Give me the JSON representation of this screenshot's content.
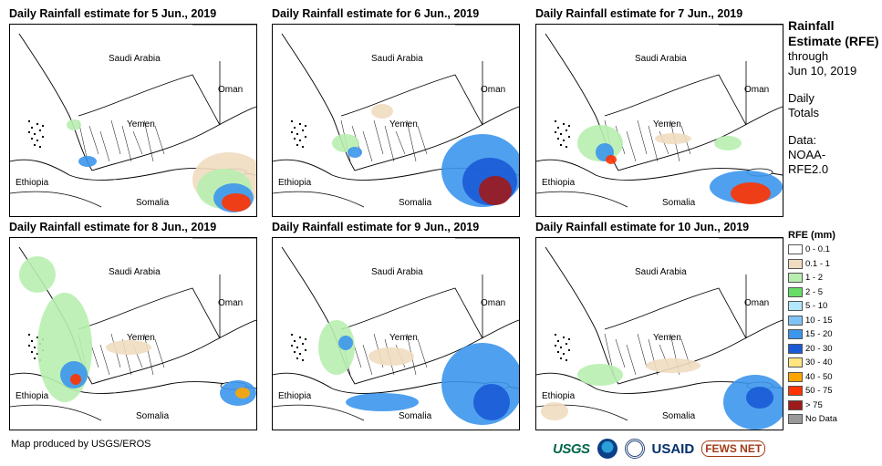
{
  "panels": [
    {
      "title": "Daily Rainfall estimate for 5 Jun., 2019"
    },
    {
      "title": "Daily Rainfall estimate for 6 Jun., 2019"
    },
    {
      "title": "Daily Rainfall estimate for 7 Jun., 2019"
    },
    {
      "title": "Daily Rainfall estimate for 8 Jun., 2019"
    },
    {
      "title": "Daily Rainfall estimate for 9 Jun., 2019"
    },
    {
      "title": "Daily Rainfall estimate for 10 Jun., 2019"
    }
  ],
  "map_labels": {
    "saudi": "Saudi Arabia",
    "oman": "Oman",
    "yemen": "Yemen",
    "ethiopia": "Ethiopia",
    "somalia": "Somalia"
  },
  "side": {
    "heading": "Rainfall Estimate (RFE)",
    "through_line1": "through",
    "through_line2": "Jun 10, 2019",
    "totals": "Daily Totals",
    "data_line1": "Data:",
    "data_line2": "NOAA-",
    "data_line3": "RFE2.0"
  },
  "legend": {
    "title": "RFE (mm)",
    "items": [
      {
        "label": "0 - 0.1",
        "color": "#ffffff"
      },
      {
        "label": "0.1 - 1",
        "color": "#f0dcc0"
      },
      {
        "label": "1 - 2",
        "color": "#b8eeb0"
      },
      {
        "label": "2 - 5",
        "color": "#66dd66"
      },
      {
        "label": "5 - 10",
        "color": "#b3e6ff"
      },
      {
        "label": "10 - 15",
        "color": "#80c4f6"
      },
      {
        "label": "15 - 20",
        "color": "#3c96ec"
      },
      {
        "label": "20 - 30",
        "color": "#1a5ad6"
      },
      {
        "label": "30 - 40",
        "color": "#ffe680"
      },
      {
        "label": "40 - 50",
        "color": "#ffa500"
      },
      {
        "label": "50 - 75",
        "color": "#ff3300"
      },
      {
        "label": "> 75",
        "color": "#9e1a1a"
      },
      {
        "label": "No Data",
        "color": "#999999"
      }
    ]
  },
  "credit": "Map produced by USGS/EROS",
  "logos": {
    "usgs": "USGS",
    "usaid": "USAID",
    "fews": "FEWS NET"
  }
}
